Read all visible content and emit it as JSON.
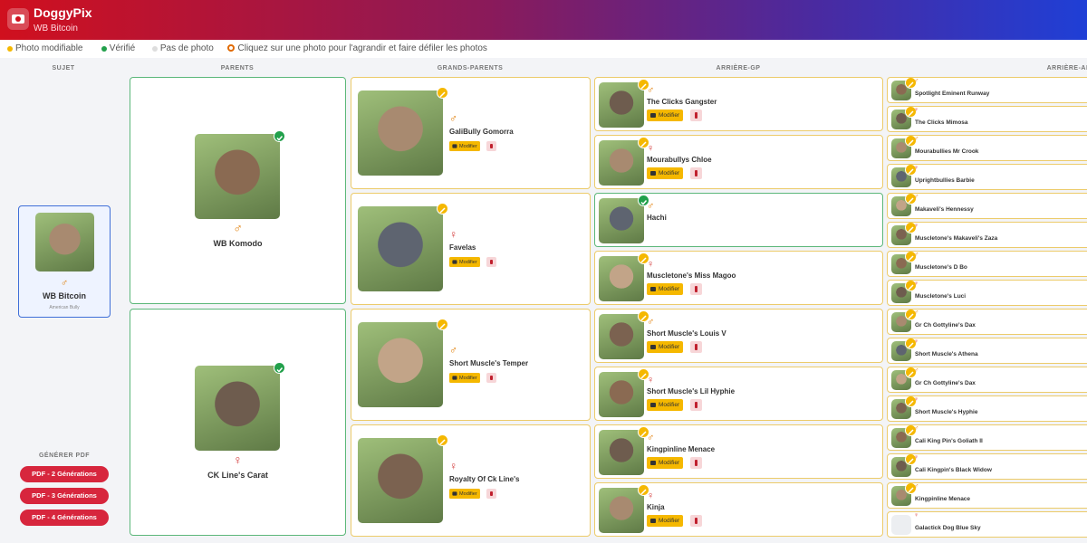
{
  "header": {
    "app_name": "DoggyPix",
    "subtitle": "WB Bitcoin"
  },
  "legend": {
    "items": [
      {
        "label": "Photo modifiable",
        "color": "#f5b800"
      },
      {
        "label": "Vérifié",
        "color": "#22a04b"
      },
      {
        "label": "Pas de photo",
        "color": "#dddddd"
      }
    ],
    "hint": "Cliquez sur une photo pour l'agrandir et faire défiler les photos"
  },
  "columns": [
    "SUJET",
    "PARENTS",
    "GRANDS-PARENTS",
    "ARRIÈRE-GP",
    "ARRIÈRE-ARRIÈRE-GP"
  ],
  "subject": {
    "name": "WB Bitcoin",
    "breed": "American Bully",
    "sex": "♂"
  },
  "pdf": {
    "title": "GÉNÉRER PDF",
    "buttons": [
      "PDF - 2 Générations",
      "PDF - 3 Générations",
      "PDF - 4 Générations"
    ]
  },
  "actions": {
    "edit": "Modifier"
  },
  "parents": [
    {
      "name": "WB Komodo",
      "sex": "♂",
      "status": "verified"
    },
    {
      "name": "CK Line's Carat",
      "sex": "♀",
      "status": "verified"
    }
  ],
  "grandparents": [
    {
      "name": "GaliBully Gomorra",
      "sex": "♂",
      "status": "modifiable"
    },
    {
      "name": "Favelas",
      "sex": "♀",
      "status": "modifiable"
    },
    {
      "name": "Short Muscle's Temper",
      "sex": "♂",
      "status": "modifiable"
    },
    {
      "name": "Royalty Of Ck Line's",
      "sex": "♀",
      "status": "modifiable"
    }
  ],
  "great_grandparents": [
    {
      "name": "The Clicks Gangster",
      "sex": "♂",
      "status": "modifiable"
    },
    {
      "name": "Mourabullys Chloe",
      "sex": "♀",
      "status": "modifiable"
    },
    {
      "name": "Hachi",
      "sex": "♂",
      "status": "verified"
    },
    {
      "name": "Muscletone's Miss Magoo",
      "sex": "♀",
      "status": "modifiable"
    },
    {
      "name": "Short Muscle's Louis V",
      "sex": "♂",
      "status": "modifiable"
    },
    {
      "name": "Short Muscle's Lil Hyphie",
      "sex": "♀",
      "status": "modifiable"
    },
    {
      "name": "Kingpinline Menace",
      "sex": "♂",
      "status": "modifiable"
    },
    {
      "name": "Kinja",
      "sex": "♀",
      "status": "modifiable"
    }
  ],
  "great_great_grandparents": [
    {
      "name": "Spotlight Eminent Runway",
      "sex": "♂",
      "status": "modifiable"
    },
    {
      "name": "The Clicks Mimosa",
      "sex": "♀",
      "status": "modifiable"
    },
    {
      "name": "Mourabullies Mr Crook",
      "sex": "♂",
      "status": "modifiable"
    },
    {
      "name": "Uprightbullies Barbie",
      "sex": "♀",
      "status": "modifiable"
    },
    {
      "name": "Makaveli's Hennessy",
      "sex": "♂",
      "status": "modifiable"
    },
    {
      "name": "Muscletone's Makaveli's Zaza",
      "sex": "♀",
      "status": "modifiable"
    },
    {
      "name": "Muscletone's D Bo",
      "sex": "♂",
      "status": "modifiable"
    },
    {
      "name": "Muscletone's Luci",
      "sex": "♀",
      "status": "modifiable"
    },
    {
      "name": "Gr Ch Gottyline's Dax",
      "sex": "♂",
      "status": "modifiable"
    },
    {
      "name": "Short Muscle's Athena",
      "sex": "♀",
      "status": "modifiable"
    },
    {
      "name": "Gr Ch Gottyline's Dax",
      "sex": "♂",
      "status": "modifiable"
    },
    {
      "name": "Short Muscle's Hyphie",
      "sex": "♀",
      "status": "modifiable"
    },
    {
      "name": "Cali King Pin's Goliath II",
      "sex": "♂",
      "status": "modifiable"
    },
    {
      "name": "Cali Kingpin's Black Widow",
      "sex": "♀",
      "status": "modifiable"
    },
    {
      "name": "Kingpinline Menace",
      "sex": "♂",
      "status": "modifiable"
    },
    {
      "name": "Galactick Dog Blue Sky",
      "sex": "♀",
      "status": "none"
    }
  ]
}
